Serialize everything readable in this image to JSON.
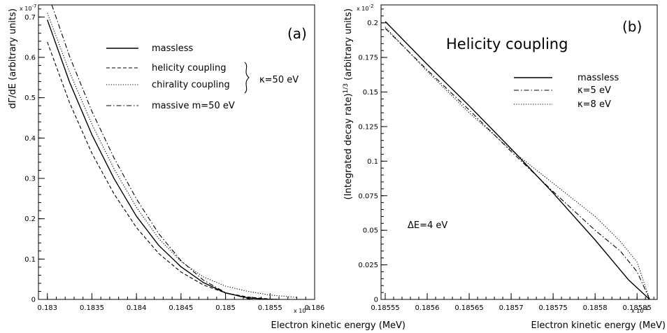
{
  "chart_data": [
    {
      "type": "line",
      "panel_label": "(a)",
      "xlabel": "Electron kinetic energy (MeV)",
      "ylabel": "dΓ/dE (arbitrary units)",
      "x_exponent": "x 10",
      "x_exponent_power": "-1",
      "y_exponent": "x 10",
      "y_exponent_power": "-7",
      "xlim": [
        0.1829,
        0.186
      ],
      "ylim": [
        0,
        0.73
      ],
      "x_ticks": [
        0.183,
        0.1835,
        0.184,
        0.1845,
        0.185,
        0.1855,
        0.186
      ],
      "x_tick_labels": [
        "0.183",
        "0.1835",
        "0.184",
        "0.1845",
        "0.185",
        "0.1855",
        "0.186"
      ],
      "y_ticks": [
        0,
        0.1,
        0.2,
        0.3,
        0.4,
        0.5,
        0.6,
        0.7
      ],
      "y_tick_labels": [
        "0",
        "0.1",
        "0.2",
        "0.3",
        "0.4",
        "0.5",
        "0.6",
        "0.7"
      ],
      "legend": {
        "entries": [
          {
            "label": "massless",
            "style": "solid"
          },
          {
            "label": "helicity coupling",
            "style": "dashed"
          },
          {
            "label": "chirality coupling",
            "style": "dotted"
          },
          {
            "label": "massive   m=50 eV",
            "style": "dashdot"
          }
        ],
        "brace_label": "κ=50 eV"
      },
      "series": [
        {
          "name": "massless",
          "style": "solid",
          "x": [
            0.183,
            0.18325,
            0.1835,
            0.18375,
            0.184,
            0.18425,
            0.1845,
            0.18475,
            0.185,
            0.18525,
            0.1855,
            0.18558
          ],
          "y": [
            0.693,
            0.538,
            0.408,
            0.299,
            0.206,
            0.134,
            0.081,
            0.042,
            0.016,
            0.004,
            0.0,
            0.0
          ]
        },
        {
          "name": "helicity coupling",
          "style": "dashed",
          "x": [
            0.183,
            0.18325,
            0.1835,
            0.18375,
            0.184,
            0.18425,
            0.1845,
            0.18475,
            0.185,
            0.18525,
            0.1855,
            0.1856
          ],
          "y": [
            0.638,
            0.487,
            0.362,
            0.261,
            0.178,
            0.114,
            0.068,
            0.036,
            0.016,
            0.006,
            0.001,
            0.0
          ]
        },
        {
          "name": "chirality coupling",
          "style": "dotted",
          "x": [
            0.183,
            0.18325,
            0.1835,
            0.18375,
            0.184,
            0.18425,
            0.1845,
            0.18475,
            0.185,
            0.18525,
            0.1855,
            0.1858
          ],
          "y": [
            0.71,
            0.563,
            0.434,
            0.323,
            0.228,
            0.151,
            0.094,
            0.056,
            0.033,
            0.02,
            0.011,
            0.005
          ]
        },
        {
          "name": "massive   m=50 eV",
          "style": "dashdot",
          "x": [
            0.18305,
            0.18325,
            0.1835,
            0.18375,
            0.184,
            0.18425,
            0.1845,
            0.18475,
            0.185,
            0.18525,
            0.1853
          ],
          "y": [
            0.73,
            0.602,
            0.466,
            0.35,
            0.249,
            0.163,
            0.096,
            0.048,
            0.017,
            0.002,
            0.0
          ]
        }
      ]
    },
    {
      "type": "line",
      "panel_label": "(b)",
      "title": "Helicity coupling",
      "xlabel": "Electron kinetic energy (MeV)",
      "ylabel": "(Integrated decay rate)",
      "ylabel_power": "1/3",
      "ylabel_suffix": " (arbitrary units)",
      "x_exponent": "x 10",
      "x_exponent_power": "-1",
      "y_exponent": "x 10",
      "y_exponent_power": "-2",
      "annotation": "ΔE=4 eV",
      "xlim": [
        0.185545,
        0.185874
      ],
      "ylim": [
        0,
        0.213
      ],
      "x_ticks": [
        0.18555,
        0.1856,
        0.18565,
        0.1857,
        0.18575,
        0.1858,
        0.18585
      ],
      "x_tick_labels": [
        "0.18555",
        "0.1856",
        "0.18565",
        "0.1857",
        "0.18575",
        "0.1858",
        "0.18585"
      ],
      "y_ticks": [
        0,
        0.025,
        0.05,
        0.075,
        0.1,
        0.125,
        0.15,
        0.175,
        0.2
      ],
      "y_tick_labels": [
        "0",
        "0.025",
        "0.05",
        "0.075",
        "0.1",
        "0.125",
        "0.15",
        "0.175",
        "0.2"
      ],
      "legend": {
        "entries": [
          {
            "label": "massless",
            "style": "solid"
          },
          {
            "label": "κ=5 eV",
            "style": "dashdot"
          },
          {
            "label": "κ=8 eV",
            "style": "dotted"
          }
        ]
      },
      "series": [
        {
          "name": "massless",
          "style": "solid",
          "x": [
            0.18555,
            0.1856,
            0.18565,
            0.1857,
            0.18575,
            0.1858,
            0.18584,
            0.185865
          ],
          "y": [
            0.201,
            0.17,
            0.14,
            0.109,
            0.077,
            0.043,
            0.014,
            0.0
          ]
        },
        {
          "name": "κ=5 eV",
          "style": "dashdot",
          "x": [
            0.18555,
            0.1856,
            0.18565,
            0.1857,
            0.18575,
            0.1858,
            0.18583,
            0.18585,
            0.185865
          ],
          "y": [
            0.196,
            0.166,
            0.137,
            0.107,
            0.078,
            0.05,
            0.035,
            0.02,
            0.0
          ]
        },
        {
          "name": "κ=8 eV",
          "style": "dotted",
          "x": [
            0.18555,
            0.1856,
            0.18565,
            0.1857,
            0.18575,
            0.1858,
            0.18583,
            0.18585,
            0.185865
          ],
          "y": [
            0.197,
            0.165,
            0.135,
            0.108,
            0.084,
            0.06,
            0.042,
            0.027,
            0.0
          ]
        }
      ]
    }
  ]
}
